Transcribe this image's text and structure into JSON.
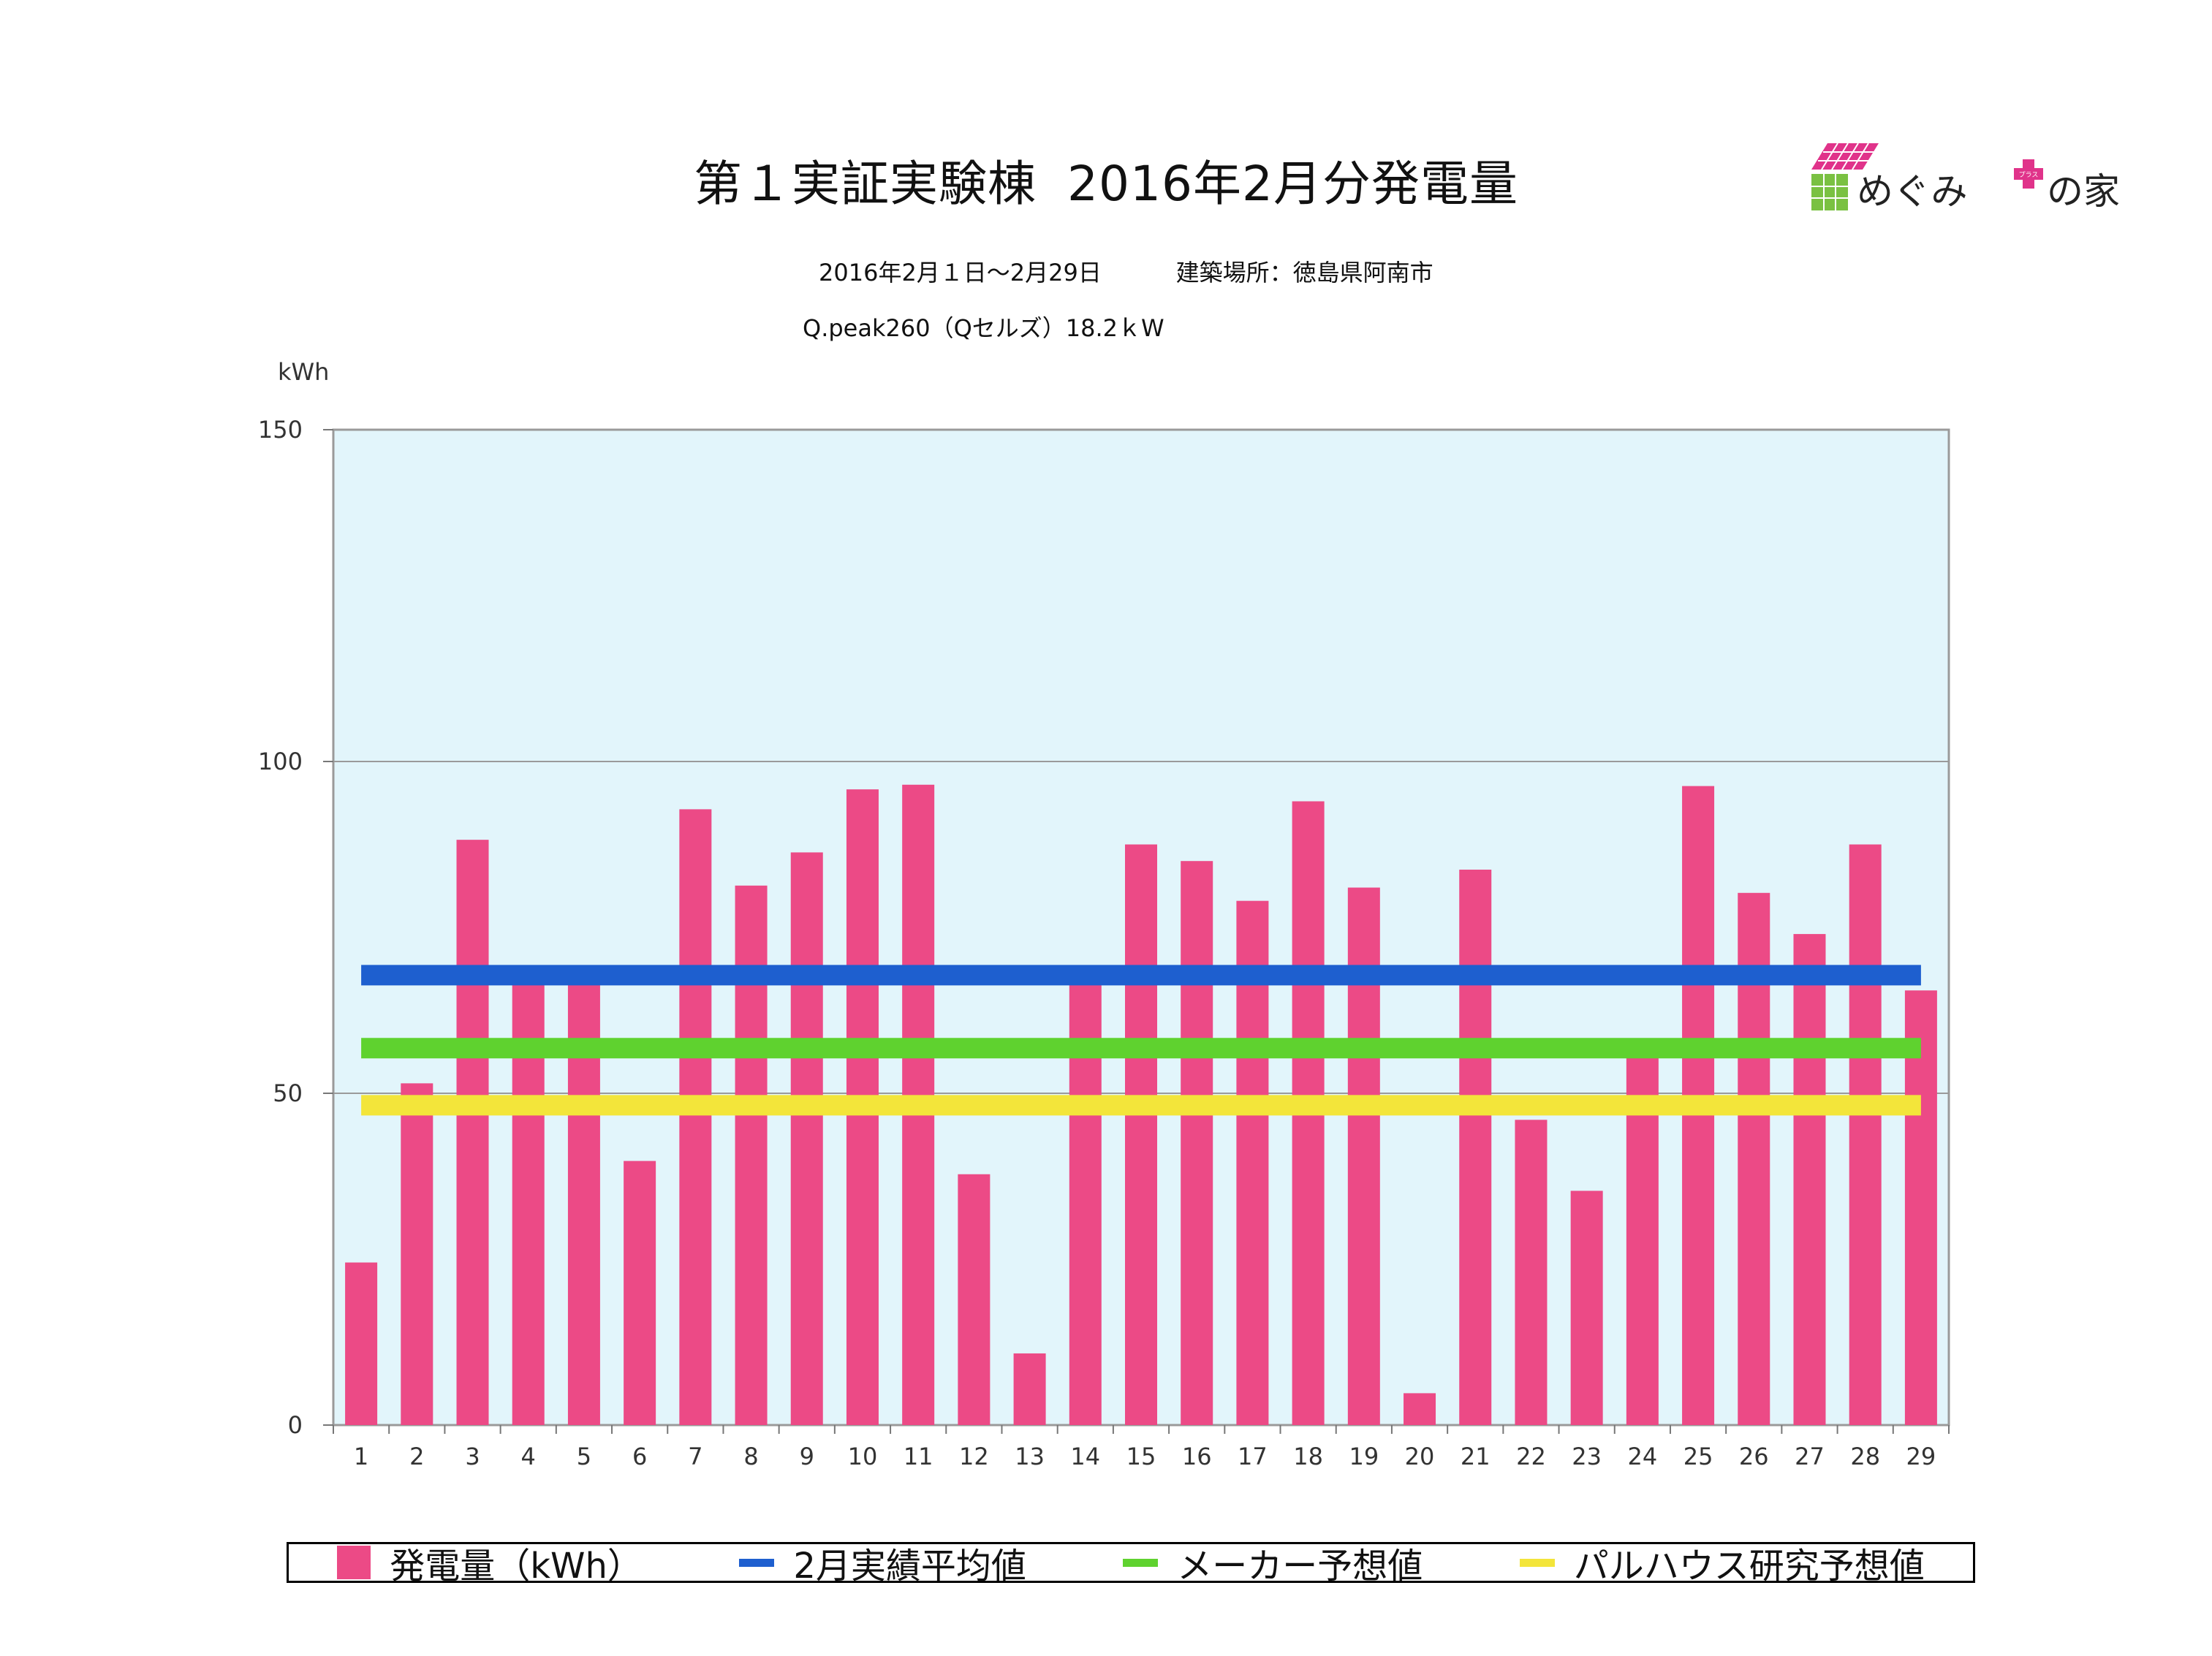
{
  "header": {
    "title_part1": "第１実証実験棟",
    "title_part2": "2016年2月分発電量",
    "period": "2016年2月１日〜2月29日",
    "location": "建築場所：徳島県阿南市",
    "system": "Q.peak260（Qセルズ）18.2ｋW"
  },
  "logo": {
    "text": "めぐみ",
    "badge_text": "プラス",
    "suffix": "の家",
    "colors": {
      "house_roof": "#e0338a",
      "house_wall": "#7ac142",
      "plus": "#e0338a"
    }
  },
  "chart_data": {
    "type": "bar",
    "unit_label": "kWh",
    "categories": [
      "1",
      "2",
      "3",
      "4",
      "5",
      "6",
      "7",
      "8",
      "9",
      "10",
      "11",
      "12",
      "13",
      "14",
      "15",
      "16",
      "17",
      "18",
      "19",
      "20",
      "21",
      "22",
      "23",
      "24",
      "25",
      "26",
      "27",
      "28",
      "29"
    ],
    "series": [
      {
        "name": "発電量（kWh）",
        "color": "#ec4a86",
        "values": [
          24.5,
          51.5,
          88.2,
          67,
          67,
          39.8,
          92.8,
          81.3,
          86.3,
          95.8,
          96.5,
          37.8,
          10.8,
          67,
          87.5,
          85,
          79,
          94,
          81,
          4.8,
          83.7,
          46,
          35.3,
          56,
          96.3,
          80.2,
          74,
          87.5,
          65.5
        ]
      }
    ],
    "reference_lines": [
      {
        "name": "2月実績平均値",
        "value": 67.8,
        "color": "#1e5fcf"
      },
      {
        "name": "メーカー予想値",
        "value": 56.8,
        "color": "#5fd22f"
      },
      {
        "name": "パルハウス研究予想値",
        "value": 48.2,
        "color": "#f3e53a"
      }
    ],
    "ylim": [
      0,
      150
    ],
    "yticks": [
      0,
      50,
      100,
      150
    ],
    "grid": true,
    "plot_background": "#e2f5fb",
    "legend_position": "bottom"
  }
}
